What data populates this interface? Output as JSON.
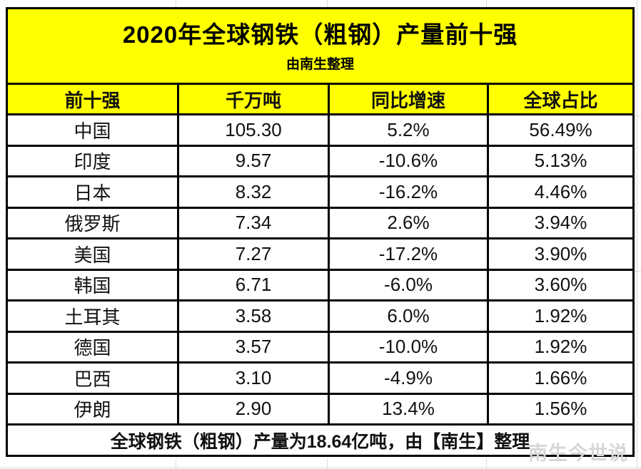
{
  "page": {
    "title": "2020年全球钢铁（粗钢）产量前十强",
    "subtitle": "由南生整理",
    "footer_note": "全球钢铁（粗钢）产量为18.64亿吨，由【南生】整理",
    "watermark": "南生今世说"
  },
  "colors": {
    "band_bg": "#ffff00",
    "border": "#000000",
    "text": "#111111",
    "watermark": "#d5d7d8"
  },
  "chart_data": {
    "type": "table",
    "title": "2020年全球钢铁（粗钢）产量前十强",
    "subtitle": "由南生整理",
    "columns": [
      "前十强",
      "千万吨",
      "同比增速",
      "全球占比"
    ],
    "rows": [
      [
        "中国",
        "105.30",
        "5.2%",
        "56.49%"
      ],
      [
        "印度",
        "9.57",
        "-10.6%",
        "5.13%"
      ],
      [
        "日本",
        "8.32",
        "-16.2%",
        "4.46%"
      ],
      [
        "俄罗斯",
        "7.34",
        "2.6%",
        "3.94%"
      ],
      [
        "美国",
        "7.27",
        "-17.2%",
        "3.90%"
      ],
      [
        "韩国",
        "6.71",
        "-6.0%",
        "3.60%"
      ],
      [
        "土耳其",
        "3.58",
        "6.0%",
        "1.92%"
      ],
      [
        "德国",
        "3.57",
        "-10.0%",
        "1.92%"
      ],
      [
        "巴西",
        "3.10",
        "-4.9%",
        "1.66%"
      ],
      [
        "伊朗",
        "2.90",
        "13.4%",
        "1.56%"
      ]
    ],
    "footer_note": "全球钢铁（粗钢）产量为18.64亿吨，由【南生】整理"
  }
}
